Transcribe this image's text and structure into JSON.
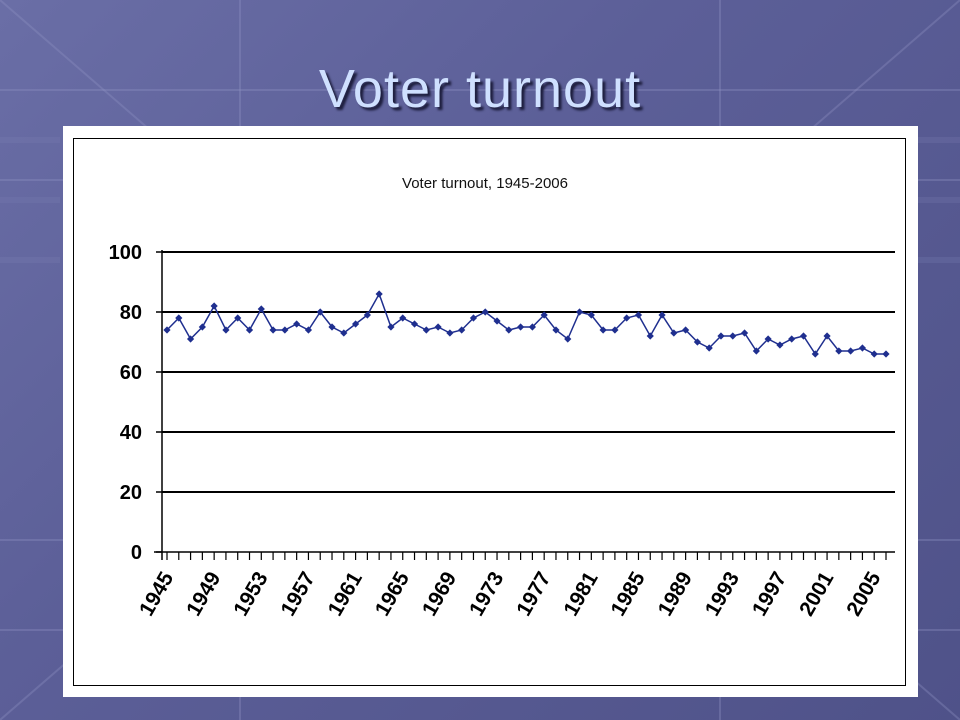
{
  "slide": {
    "title": "Voter turnout"
  },
  "colors": {
    "series": "#1f2f8f",
    "background": "#5d6098",
    "title": "#cfe0ff"
  },
  "chart_data": {
    "type": "line",
    "title": "Voter turnout, 1945-2006",
    "xlabel": "",
    "ylabel": "",
    "ylim": [
      0,
      100
    ],
    "yticks": [
      0,
      20,
      40,
      60,
      80,
      100
    ],
    "grid": "horizontal",
    "legend": "none",
    "x_tick_labels": [
      "1945",
      "1949",
      "1953",
      "1957",
      "1961",
      "1965",
      "1969",
      "1973",
      "1977",
      "1981",
      "1985",
      "1989",
      "1993",
      "1997",
      "2001",
      "2005"
    ],
    "x": [
      1945,
      1946,
      1947,
      1948,
      1949,
      1950,
      1951,
      1952,
      1953,
      1954,
      1955,
      1956,
      1957,
      1958,
      1959,
      1960,
      1961,
      1962,
      1963,
      1964,
      1965,
      1966,
      1967,
      1968,
      1969,
      1970,
      1971,
      1972,
      1973,
      1974,
      1975,
      1976,
      1977,
      1978,
      1979,
      1980,
      1981,
      1982,
      1983,
      1984,
      1985,
      1986,
      1987,
      1988,
      1989,
      1990,
      1991,
      1992,
      1993,
      1994,
      1995,
      1996,
      1997,
      1998,
      1999,
      2000,
      2001,
      2002,
      2003,
      2004,
      2005,
      2006
    ],
    "series": [
      {
        "values": [
          74,
          78,
          71,
          75,
          82,
          74,
          78,
          74,
          81,
          74,
          74,
          76,
          74,
          80,
          75,
          73,
          76,
          79,
          86,
          75,
          78,
          76,
          74,
          75,
          73,
          74,
          78,
          80,
          77,
          74,
          75,
          75,
          79,
          74,
          71,
          80,
          79,
          74,
          74,
          78,
          79,
          72,
          79,
          73,
          74,
          70,
          68,
          72,
          72,
          73,
          67,
          71,
          69,
          71,
          72,
          66,
          72,
          67,
          67,
          68,
          66,
          66
        ]
      }
    ]
  }
}
